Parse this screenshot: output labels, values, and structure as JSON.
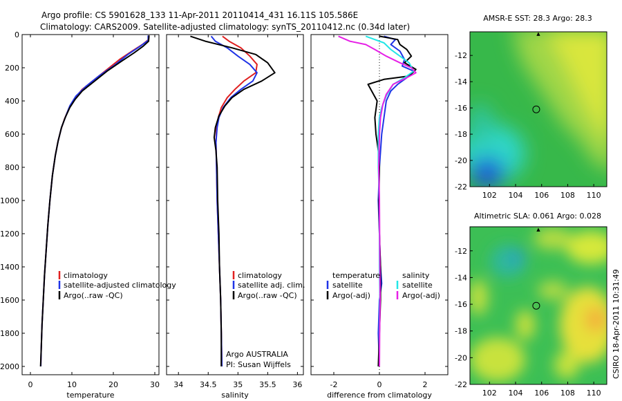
{
  "header": {
    "title_line1": "Argo profile: CS 5901628_133 11-Apr-2011 20110414_431 16.11S 105.586E",
    "title_line2": "Climatology: CARS2009. Satellite-adjusted climatology: synTS_20110412.nc (0.34d later)"
  },
  "side_label": "CSIRO 18-Apr-2011 10:31:49",
  "colors": {
    "red": "#e02020",
    "blue": "#1f33e6",
    "black": "#000000",
    "cyan": "#22e6e6",
    "magenta": "#e620e6"
  },
  "chart_data": [
    {
      "type": "line",
      "xlabel": "temperature",
      "xlim": [
        -2,
        31
      ],
      "ylim": [
        2050,
        0
      ],
      "xticks": [
        0,
        10,
        20,
        30
      ],
      "yticks": [
        0,
        200,
        400,
        600,
        800,
        1000,
        1200,
        1400,
        1600,
        1800,
        2000
      ],
      "legend": [
        "climatology",
        "satellite-adjusted climatology",
        "Argo(..raw -QC)"
      ],
      "series": [
        {
          "name": "climatology",
          "color": "red",
          "points": [
            [
              28.6,
              5
            ],
            [
              28.5,
              30
            ],
            [
              27,
              60
            ],
            [
              24.5,
              100
            ],
            [
              21.5,
              150
            ],
            [
              18.5,
              210
            ],
            [
              15.5,
              270
            ],
            [
              12.5,
              330
            ],
            [
              10.5,
              390
            ],
            [
              9.2,
              450
            ],
            [
              8.2,
              510
            ],
            [
              7.4,
              570
            ],
            [
              6.6,
              650
            ],
            [
              6,
              730
            ],
            [
              5.3,
              850
            ],
            [
              4.7,
              1000
            ],
            [
              4.2,
              1150
            ],
            [
              3.8,
              1300
            ],
            [
              3.4,
              1450
            ],
            [
              3.1,
              1600
            ],
            [
              2.8,
              1750
            ],
            [
              2.6,
              1900
            ],
            [
              2.5,
              2000
            ]
          ]
        },
        {
          "name": "satellite-adjusted climatology",
          "color": "blue",
          "points": [
            [
              28.4,
              5
            ],
            [
              28.4,
              35
            ],
            [
              26.5,
              70
            ],
            [
              23.5,
              120
            ],
            [
              20,
              190
            ],
            [
              16.5,
              250
            ],
            [
              13.5,
              310
            ],
            [
              11,
              370
            ],
            [
              9.5,
              430
            ],
            [
              8.4,
              500
            ],
            [
              7.5,
              560
            ],
            [
              6.7,
              640
            ],
            [
              6,
              730
            ],
            [
              5.3,
              850
            ],
            [
              4.7,
              1000
            ],
            [
              4.2,
              1150
            ],
            [
              3.8,
              1300
            ],
            [
              3.4,
              1450
            ],
            [
              3.1,
              1600
            ],
            [
              2.8,
              1750
            ],
            [
              2.6,
              1900
            ],
            [
              2.5,
              2000
            ]
          ]
        },
        {
          "name": "Argo(..raw -QC)",
          "color": "black",
          "points": [
            [
              28.6,
              5
            ],
            [
              28.5,
              40
            ],
            [
              27.2,
              70
            ],
            [
              25,
              110
            ],
            [
              22,
              160
            ],
            [
              18.5,
              220
            ],
            [
              15,
              290
            ],
            [
              12.5,
              340
            ],
            [
              10.8,
              390
            ],
            [
              9.5,
              440
            ],
            [
              8.4,
              500
            ],
            [
              7.5,
              560
            ],
            [
              6.7,
              640
            ],
            [
              6,
              730
            ],
            [
              5.3,
              850
            ],
            [
              4.7,
              1000
            ],
            [
              4.2,
              1150
            ],
            [
              3.8,
              1300
            ],
            [
              3.4,
              1450
            ],
            [
              3.1,
              1600
            ],
            [
              2.8,
              1750
            ],
            [
              2.6,
              1900
            ],
            [
              2.45,
              2000
            ]
          ]
        }
      ]
    },
    {
      "type": "line",
      "xlabel": "salinity",
      "xlim": [
        33.8,
        36.1
      ],
      "ylim": [
        2050,
        0
      ],
      "xticks": [
        34,
        34.5,
        35,
        35.5,
        36
      ],
      "yticks": [
        0,
        200,
        400,
        600,
        800,
        1000,
        1200,
        1400,
        1600,
        1800,
        2000
      ],
      "legend": [
        "climatology",
        "satellite adj. clim.",
        "Argo(..raw -QC)"
      ],
      "series": [
        {
          "name": "climatology",
          "color": "red",
          "points": [
            [
              34.74,
              10
            ],
            [
              34.85,
              40
            ],
            [
              35.05,
              80
            ],
            [
              35.2,
              130
            ],
            [
              35.32,
              180
            ],
            [
              35.3,
              230
            ],
            [
              35.1,
              280
            ],
            [
              34.95,
              330
            ],
            [
              34.82,
              380
            ],
            [
              34.72,
              440
            ],
            [
              34.67,
              500
            ],
            [
              34.64,
              560
            ],
            [
              34.63,
              650
            ],
            [
              34.64,
              800
            ],
            [
              34.65,
              1000
            ],
            [
              34.67,
              1200
            ],
            [
              34.69,
              1400
            ],
            [
              34.71,
              1600
            ],
            [
              34.72,
              1800
            ],
            [
              34.73,
              2000
            ]
          ]
        },
        {
          "name": "satellite adj. clim.",
          "color": "blue",
          "points": [
            [
              34.55,
              10
            ],
            [
              34.62,
              40
            ],
            [
              34.82,
              80
            ],
            [
              35,
              130
            ],
            [
              35.2,
              180
            ],
            [
              35.32,
              230
            ],
            [
              35.25,
              280
            ],
            [
              35.05,
              330
            ],
            [
              34.88,
              380
            ],
            [
              34.75,
              440
            ],
            [
              34.68,
              500
            ],
            [
              34.65,
              560
            ],
            [
              34.63,
              650
            ],
            [
              34.64,
              800
            ],
            [
              34.65,
              1000
            ],
            [
              34.67,
              1200
            ],
            [
              34.69,
              1400
            ],
            [
              34.71,
              1600
            ],
            [
              34.72,
              1800
            ],
            [
              34.73,
              2000
            ]
          ]
        },
        {
          "name": "Argo(..raw -QC)",
          "color": "black",
          "points": [
            [
              34.2,
              10
            ],
            [
              34.45,
              40
            ],
            [
              34.9,
              80
            ],
            [
              35.3,
              120
            ],
            [
              35.5,
              170
            ],
            [
              35.62,
              230
            ],
            [
              35.4,
              280
            ],
            [
              35.1,
              330
            ],
            [
              34.9,
              380
            ],
            [
              34.78,
              430
            ],
            [
              34.68,
              490
            ],
            [
              34.62,
              560
            ],
            [
              34.6,
              620
            ],
            [
              34.63,
              700
            ],
            [
              34.65,
              800
            ],
            [
              34.66,
              1000
            ],
            [
              34.68,
              1200
            ],
            [
              34.69,
              1400
            ],
            [
              34.71,
              1600
            ],
            [
              34.72,
              1800
            ],
            [
              34.72,
              2000
            ]
          ]
        }
      ],
      "annotations": [
        "Argo AUSTRALIA",
        "PI: Susan Wijffels"
      ]
    },
    {
      "type": "line",
      "xlabel": "difference from climatology",
      "xlim": [
        -3,
        3
      ],
      "ylim": [
        2050,
        0
      ],
      "xticks": [
        -2,
        0,
        2
      ],
      "yticks": [
        0,
        200,
        400,
        600,
        800,
        1000,
        1200,
        1400,
        1600,
        1800,
        2000
      ],
      "legend_groups": [
        {
          "title": "temperature",
          "items": [
            "satellite",
            "Argo(-adj)"
          ]
        },
        {
          "title": "salinity",
          "items": [
            "satellite",
            "Argo(-adj)"
          ]
        }
      ],
      "series": [
        {
          "name": "temperature satellite",
          "color": "blue",
          "points": [
            [
              0.2,
              10
            ],
            [
              0.7,
              30
            ],
            [
              0.5,
              60
            ],
            [
              0.9,
              100
            ],
            [
              1.1,
              150
            ],
            [
              1,
              190
            ],
            [
              1.5,
              220
            ],
            [
              1.2,
              260
            ],
            [
              0.8,
              300
            ],
            [
              0.5,
              340
            ],
            [
              0.3,
              400
            ],
            [
              0.2,
              500
            ],
            [
              0.1,
              600
            ],
            [
              0,
              800
            ],
            [
              -0.05,
              1000
            ],
            [
              0,
              1200
            ],
            [
              0.05,
              1400
            ],
            [
              0.1,
              1500
            ],
            [
              0,
              1600
            ],
            [
              -0.05,
              1800
            ],
            [
              0,
              2000
            ]
          ]
        },
        {
          "name": "temperature Argo(-adj)",
          "color": "black",
          "points": [
            [
              0,
              10
            ],
            [
              0.8,
              30
            ],
            [
              0.9,
              60
            ],
            [
              1.2,
              90
            ],
            [
              1.4,
              130
            ],
            [
              1.1,
              170
            ],
            [
              1.6,
              210
            ],
            [
              1.3,
              250
            ],
            [
              0.2,
              270
            ],
            [
              -0.5,
              300
            ],
            [
              -0.3,
              350
            ],
            [
              -0.1,
              400
            ],
            [
              -0.2,
              500
            ],
            [
              -0.15,
              600
            ],
            [
              -0.05,
              700
            ],
            [
              0,
              800
            ],
            [
              -0.02,
              1000
            ],
            [
              0,
              1200
            ],
            [
              0.05,
              1400
            ],
            [
              0.05,
              1600
            ],
            [
              0,
              1800
            ],
            [
              -0.05,
              2000
            ]
          ]
        },
        {
          "name": "salinity satellite",
          "color": "cyan",
          "points": [
            [
              -0.6,
              10
            ],
            [
              0.2,
              50
            ],
            [
              0.5,
              90
            ],
            [
              0.9,
              130
            ],
            [
              1.3,
              170
            ],
            [
              1.5,
              220
            ],
            [
              1.1,
              260
            ],
            [
              0.6,
              300
            ],
            [
              0.3,
              370
            ],
            [
              0.1,
              440
            ],
            [
              0,
              500
            ],
            [
              -0.05,
              600
            ],
            [
              -0.05,
              800
            ],
            [
              0,
              1000
            ],
            [
              0,
              1200
            ],
            [
              0,
              1400
            ],
            [
              0.02,
              1600
            ],
            [
              0,
              1800
            ],
            [
              0,
              2000
            ]
          ]
        },
        {
          "name": "salinity Argo(-adj)",
          "color": "magenta",
          "points": [
            [
              -1.8,
              10
            ],
            [
              -1.3,
              40
            ],
            [
              -0.6,
              60
            ],
            [
              -0.2,
              90
            ],
            [
              0.3,
              130
            ],
            [
              0.9,
              170
            ],
            [
              1.4,
              200
            ],
            [
              1.6,
              230
            ],
            [
              1.2,
              260
            ],
            [
              0.6,
              300
            ],
            [
              0.3,
              360
            ],
            [
              0.15,
              420
            ],
            [
              0.05,
              500
            ],
            [
              0,
              600
            ],
            [
              -0.03,
              800
            ],
            [
              0,
              1000
            ],
            [
              0.01,
              1200
            ],
            [
              0.02,
              1400
            ],
            [
              0.03,
              1600
            ],
            [
              0.01,
              1800
            ],
            [
              0,
              2000
            ]
          ]
        }
      ]
    },
    {
      "type": "heatmap",
      "title": "AMSR-E SST: 28.3  Argo: 28.3",
      "xlim": [
        100.5,
        111
      ],
      "ylim": [
        -22,
        -10.2
      ],
      "xticks": [
        102,
        104,
        106,
        108,
        110
      ],
      "yticks": [
        -12,
        -14,
        -16,
        -18,
        -20,
        -22
      ],
      "marker": [
        105.586,
        -16.11
      ],
      "gradient": [
        "#1b5ad6",
        "#1fa8d8",
        "#2fd6c8",
        "#2ec66e",
        "#37b84a",
        "#7fd04a",
        "#d6e83a",
        "#f2e02e",
        "#f3b43a"
      ]
    },
    {
      "type": "heatmap",
      "title": "Altimetric SLA: 0.061  Argo: 0.028",
      "xlim": [
        100.5,
        111
      ],
      "ylim": [
        -22,
        -10.2
      ],
      "xticks": [
        102,
        104,
        106,
        108,
        110
      ],
      "yticks": [
        -12,
        -14,
        -16,
        -18,
        -20,
        -22
      ],
      "marker": [
        105.586,
        -16.11
      ],
      "gradient": [
        "#1fa8d8",
        "#2fd6c8",
        "#2ec66e",
        "#37b84a",
        "#7fd04a",
        "#d6e83a",
        "#f2e02e",
        "#f3b43a"
      ]
    }
  ]
}
